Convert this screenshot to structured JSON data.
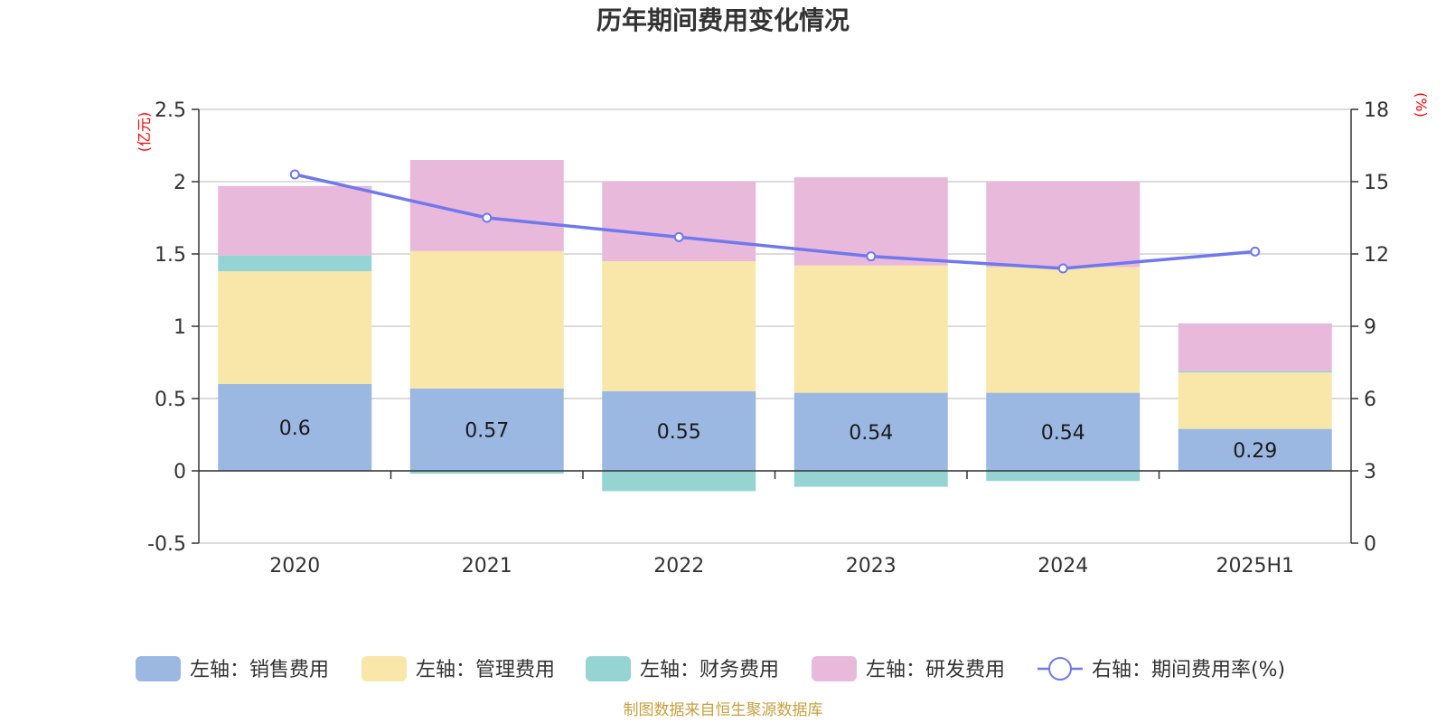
{
  "chart_data": {
    "type": "bar",
    "title": "历年期间费用变化情况",
    "categories": [
      "2020",
      "2021",
      "2022",
      "2023",
      "2024",
      "2025H1"
    ],
    "stacked": true,
    "left_axis": {
      "unit": "(亿元)",
      "range": [
        -0.5,
        2.5
      ],
      "ticks": [
        "-0.5",
        "0",
        "0.5",
        "1",
        "1.5",
        "2",
        "2.5"
      ]
    },
    "right_axis": {
      "unit": "(%)",
      "range": [
        0,
        18
      ],
      "ticks": [
        "0",
        "3",
        "6",
        "9",
        "12",
        "15",
        "18"
      ]
    },
    "series": [
      {
        "name": "左轴：销售费用",
        "type": "bar",
        "axis": "left",
        "color": "#9bb8e2",
        "values": [
          0.6,
          0.57,
          0.55,
          0.54,
          0.54,
          0.29
        ],
        "labels": [
          "0.6",
          "0.57",
          "0.55",
          "0.54",
          "0.54",
          "0.29"
        ]
      },
      {
        "name": "左轴：管理费用",
        "type": "bar",
        "axis": "left",
        "color": "#f8e7a8",
        "values": [
          0.78,
          0.95,
          0.9,
          0.88,
          0.87,
          0.39
        ]
      },
      {
        "name": "左轴：财务费用",
        "type": "bar",
        "axis": "left",
        "color": "#96d4d4",
        "values": [
          0.11,
          -0.02,
          -0.14,
          -0.11,
          -0.07,
          0.01
        ]
      },
      {
        "name": "左轴：研发费用",
        "type": "bar",
        "axis": "left",
        "color": "#e8b9da",
        "values": [
          0.48,
          0.63,
          0.55,
          0.61,
          0.59,
          0.33
        ]
      },
      {
        "name": "右轴：期间费用率(%)",
        "type": "line",
        "axis": "right",
        "color": "#7078ee",
        "values": [
          15.3,
          13.5,
          12.7,
          11.9,
          11.4,
          12.1
        ]
      }
    ],
    "grid": true,
    "legend": "bottom",
    "source": "制图数据来自恒生聚源数据库"
  }
}
